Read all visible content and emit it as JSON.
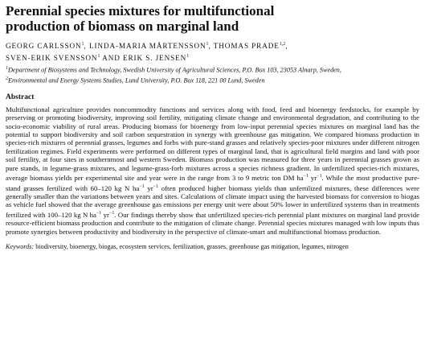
{
  "title_line1": "Perennial species mixtures for multifunctional",
  "title_line2": "production of biomass on marginal land",
  "authors": {
    "line1_a": "Georg Carlsson",
    "line1_a_sup": "1",
    "line1_b": ", Linda-Maria Mårtensson",
    "line1_b_sup": "1",
    "line1_c": ", Thomas Prade",
    "line1_c_sup": "1,2",
    "line2_a": "Sven-Erik Svensson",
    "line2_a_sup": "1",
    "line2_b": " and Erik S. Jensen",
    "line2_b_sup": "1"
  },
  "affiliations": {
    "a1_sup": "1",
    "a1_text": "Department of Biosystems and Technology, Swedish University of Agricultural Sciences, P.O. Box 103,  23053 Alnarp, Sweden,",
    "a2_sup": "2",
    "a2_text": "Environmental and Energy Systems Studies, Lund University, P.O. Box 118,  221 00 Lund, Sweden"
  },
  "abstract_heading": "Abstract",
  "abstract": {
    "p1": "Multifunctional agriculture provides noncommodity functions and services along with food, feed and bioenergy feedstocks, for example by preserving or promoting biodiversity, improving soil fertility, mitigating climate change and environmental degradation, and contributing to the socio-economic viability of rural areas. Producing biomass for bioenergy from low-input perennial species mixtures on marginal land has the potential to support biodiversity and soil carbon sequestration in synergy with greenhouse gas mitigation. We compared biomass production in species-rich mixtures of perennial grasses, legumes and forbs with pure-stand grasses and relatively species-poor mixtures under different nitrogen fertilization regimes. Field experiments were performed on different types of marginal land, that is agricultural field margins and land with poor soil fertility, at four sites in southernmost and western Sweden. Biomass production was measured for three years in perennial grasses grown as pure stands, in legume-grass mixtures, and legume-grass-forb mixtures across a species richness gradient. In unfertilized species-rich mixtures, average biomass yields per experimental site and year were in the range from 3 to 9 metric ton DM ha",
    "unit1_sup": "−1",
    "p1b": " yr",
    "unit2_sup": "−1",
    "p2": ". While the most productive pure-stand grasses fertilized with 60–120 kg N ha",
    "unit3_sup": "−1",
    "p2b": " yr",
    "unit4_sup": "−1",
    "p3": " often produced higher biomass yields than unfertilized mixtures, these differences were generally smaller than the variations between years and sites. Calculations of climate impact using the harvested biomass for conversion to biogas as vehicle fuel showed that the average greenhouse gas emissions per energy unit were about 50% lower in unfertilized systems than in treatments fertilized with 100–120 kg N ha",
    "unit5_sup": "−1",
    "p3b": " yr",
    "unit6_sup": "−1",
    "p4": ". Our findings thereby show that unfertilized species-rich perennial plant mixtures on marginal land provide resource-efficient biomass production and contribute to the mitigation of climate change. Perennial species mixtures managed with low inputs thus promote synergies between productivity and biodiversity in the perspective of climate-smart and multifunctional biomass production."
  },
  "keywords": {
    "label": "Keywords:",
    "text": " biodiversity, bioenergy, biogas, ecosystem services, fertilization, grasses, greenhouse gas mitigation, legumes, nitrogen"
  }
}
